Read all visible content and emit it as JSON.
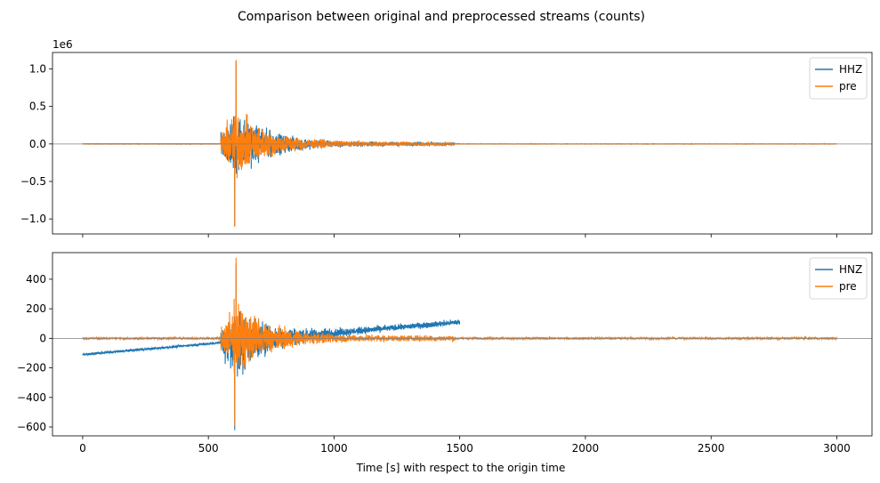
{
  "chart_data": {
    "type": "line",
    "title": "Comparison between original and preprocessed streams (counts)",
    "xlabel": "Time [s] with respect to the origin time",
    "xlim": [
      -120,
      3140
    ],
    "xticks": [
      0,
      500,
      1000,
      1500,
      2000,
      2500,
      3000
    ],
    "colors": {
      "original": "#1f77b4",
      "pre": "#ff7f0e",
      "zero_line": "#808080"
    },
    "panels": [
      {
        "offset_label": "1e6",
        "ylim": [
          -1.2,
          1.22
        ],
        "yticks": [
          -1.0,
          -0.5,
          0.0,
          0.5,
          1.0
        ],
        "ytick_labels": [
          "−1.0",
          "−0.5",
          "0.0",
          "0.5",
          "1.0"
        ],
        "legend_position": "upper right",
        "series": [
          {
            "name": "HHZ",
            "role": "original",
            "x_range": [
              0,
              1500
            ],
            "event_onset": 550,
            "event_peak_time": 610,
            "peak_positive": 1.1,
            "peak_negative": -1.1,
            "trend_start": 0,
            "trend_end": 0
          },
          {
            "name": "pre",
            "role": "pre",
            "x_range": [
              0,
              3000
            ],
            "event_onset": 550,
            "event_peak_time": 610,
            "peak_positive": 1.12,
            "peak_negative": -1.1,
            "trend_start": 0,
            "trend_end": 0
          }
        ]
      },
      {
        "offset_label": "",
        "ylim": [
          -660,
          580
        ],
        "yticks": [
          -600,
          -400,
          -200,
          0,
          200,
          400
        ],
        "ytick_labels": [
          "−600",
          "−400",
          "−200",
          "0",
          "200",
          "400"
        ],
        "legend_position": "upper right",
        "series": [
          {
            "name": "HNZ",
            "role": "original",
            "x_range": [
              0,
              1500
            ],
            "event_onset": 550,
            "event_peak_time": 610,
            "peak_positive": 520,
            "peak_negative": -600,
            "trend_start": -110,
            "trend_end": 110
          },
          {
            "name": "pre",
            "role": "pre",
            "x_range": [
              0,
              3000
            ],
            "event_onset": 550,
            "event_peak_time": 610,
            "peak_positive": 545,
            "peak_negative": -590,
            "trend_start": 0,
            "trend_end": 0
          }
        ]
      }
    ]
  }
}
